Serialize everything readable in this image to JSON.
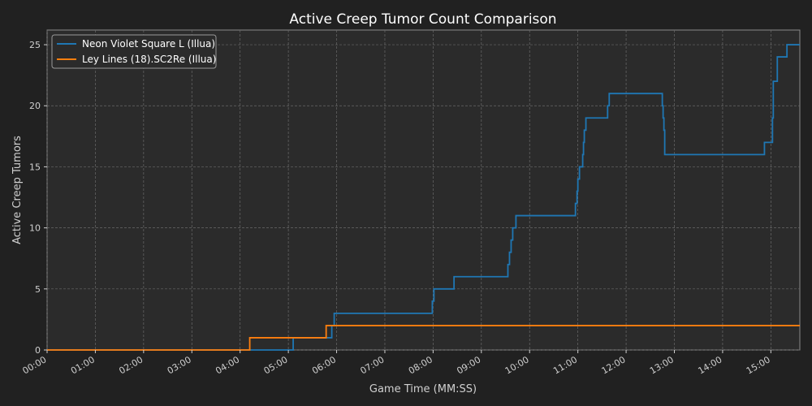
{
  "chart_data": {
    "type": "line",
    "title": "Active Creep Tumor Count Comparison",
    "xlabel": "Game Time (MM:SS)",
    "ylabel": "Active Creep Tumors",
    "x_unit": "seconds",
    "xlim": [
      0,
      936
    ],
    "ylim": [
      0,
      26.2
    ],
    "x_ticks": [
      0,
      60,
      120,
      180,
      240,
      300,
      360,
      420,
      480,
      540,
      600,
      660,
      720,
      780,
      840,
      900
    ],
    "x_tick_labels": [
      "00:00",
      "01:00",
      "02:00",
      "03:00",
      "04:00",
      "05:00",
      "06:00",
      "07:00",
      "08:00",
      "09:00",
      "10:00",
      "11:00",
      "12:00",
      "13:00",
      "14:00",
      "15:00"
    ],
    "y_ticks": [
      0,
      5,
      10,
      15,
      20,
      25
    ],
    "y_tick_labels": [
      "0",
      "5",
      "10",
      "15",
      "20",
      "25"
    ],
    "grid": true,
    "legend_position": "top-left",
    "series": [
      {
        "name": "Neon Violet Square L (Illua)",
        "color": "#1f77b4",
        "step": "post",
        "x": [
          0,
          306,
          354,
          357,
          479,
          481,
          506,
          573,
          575,
          577,
          579,
          583,
          584,
          657,
          659,
          660,
          662,
          666,
          667,
          668,
          670,
          676,
          697,
          699,
          704,
          765,
          766,
          767,
          768,
          892,
          902,
          903,
          904,
          908,
          920,
          936
        ],
        "y": [
          0,
          1,
          2,
          3,
          4,
          5,
          6,
          7,
          8,
          9,
          10,
          11,
          11,
          12,
          13,
          14,
          15,
          16,
          17,
          18,
          19,
          19,
          20,
          21,
          21,
          20,
          19,
          18,
          16,
          17,
          19,
          22,
          22,
          24,
          25,
          25
        ]
      },
      {
        "name": "Ley Lines (18).SC2Re (Illua)",
        "color": "#ff7f0e",
        "step": "post",
        "x": [
          0,
          252,
          347,
          936
        ],
        "y": [
          0,
          1,
          2,
          2
        ]
      }
    ]
  }
}
